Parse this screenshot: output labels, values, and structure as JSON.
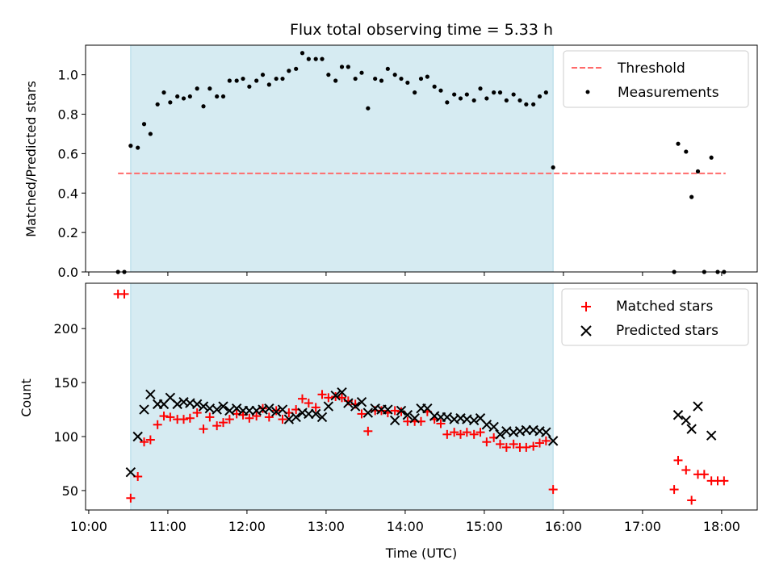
{
  "chart_data": [
    {
      "type": "scatter",
      "title": "Flux total observing time = 5.33 h",
      "xlabel": "",
      "ylabel": "Matched/Predicted stars",
      "xlim": [
        9.96,
        18.45
      ],
      "ylim": [
        0.0,
        1.15
      ],
      "yticks": [
        0.0,
        0.2,
        0.4,
        0.6,
        0.8,
        1.0
      ],
      "ytick_labels": [
        "0.0",
        "0.2",
        "0.4",
        "0.6",
        "0.8",
        "1.0"
      ],
      "shaded_region": {
        "x_start": 10.53,
        "x_end": 15.87,
        "color": "#add8e6"
      },
      "legend": {
        "position": "upper-right",
        "entries": [
          "Threshold",
          "Measurements"
        ]
      },
      "series": [
        {
          "name": "Threshold",
          "kind": "dashed-line",
          "color": "#ff6b6b",
          "x": [
            10.37,
            18.05
          ],
          "y": [
            0.5,
            0.5
          ]
        },
        {
          "name": "Measurements",
          "kind": "dot",
          "color": "#000000",
          "x": [
            10.37,
            10.45,
            10.53,
            10.62,
            10.7,
            10.78,
            10.87,
            10.95,
            11.03,
            11.12,
            11.2,
            11.28,
            11.37,
            11.45,
            11.53,
            11.62,
            11.7,
            11.78,
            11.87,
            11.95,
            12.03,
            12.12,
            12.2,
            12.28,
            12.37,
            12.45,
            12.53,
            12.62,
            12.7,
            12.78,
            12.87,
            12.95,
            13.03,
            13.12,
            13.2,
            13.28,
            13.37,
            13.45,
            13.53,
            13.62,
            13.7,
            13.78,
            13.87,
            13.95,
            14.03,
            14.12,
            14.2,
            14.28,
            14.37,
            14.45,
            14.53,
            14.62,
            14.7,
            14.78,
            14.87,
            14.95,
            15.03,
            15.12,
            15.2,
            15.28,
            15.37,
            15.45,
            15.53,
            15.62,
            15.7,
            15.78,
            15.87,
            17.4,
            17.45,
            17.55,
            17.62,
            17.7,
            17.78,
            17.87,
            17.95,
            18.03
          ],
          "y": [
            0.0,
            0.0,
            0.64,
            0.63,
            0.75,
            0.7,
            0.85,
            0.91,
            0.86,
            0.89,
            0.88,
            0.89,
            0.93,
            0.84,
            0.93,
            0.89,
            0.89,
            0.97,
            0.97,
            0.98,
            0.94,
            0.97,
            1.0,
            0.95,
            0.98,
            0.98,
            1.02,
            1.03,
            1.11,
            1.08,
            1.08,
            1.08,
            1.0,
            0.97,
            1.04,
            1.04,
            0.98,
            1.01,
            0.83,
            0.98,
            0.97,
            1.03,
            1.0,
            0.98,
            0.96,
            0.91,
            0.98,
            0.99,
            0.94,
            0.92,
            0.86,
            0.9,
            0.88,
            0.9,
            0.87,
            0.93,
            0.88,
            0.91,
            0.91,
            0.87,
            0.9,
            0.87,
            0.85,
            0.85,
            0.89,
            0.91,
            0.53,
            0.0,
            0.65,
            0.61,
            0.38,
            0.51,
            0.0,
            0.58,
            0.0,
            0.0
          ]
        }
      ]
    },
    {
      "type": "scatter",
      "title": "",
      "xlabel": "Time (UTC)",
      "ylabel": "Count",
      "xlim": [
        9.96,
        18.45
      ],
      "ylim": [
        32,
        242
      ],
      "yticks": [
        50,
        100,
        150,
        200
      ],
      "ytick_labels": [
        "50",
        "100",
        "150",
        "200"
      ],
      "xticks": [
        10,
        11,
        12,
        13,
        14,
        15,
        16,
        17,
        18
      ],
      "xtick_labels": [
        "10:00",
        "11:00",
        "12:00",
        "13:00",
        "14:00",
        "15:00",
        "16:00",
        "17:00",
        "18:00"
      ],
      "shaded_region": {
        "x_start": 10.53,
        "x_end": 15.87,
        "color": "#add8e6"
      },
      "legend": {
        "position": "upper-right",
        "entries": [
          "Matched stars",
          "Predicted stars"
        ]
      },
      "series": [
        {
          "name": "Matched stars",
          "kind": "plus",
          "color": "#ff0000",
          "x": [
            10.37,
            10.45,
            10.53,
            10.62,
            10.7,
            10.78,
            10.87,
            10.95,
            11.03,
            11.12,
            11.2,
            11.28,
            11.37,
            11.45,
            11.53,
            11.62,
            11.7,
            11.78,
            11.87,
            11.95,
            12.03,
            12.12,
            12.2,
            12.28,
            12.37,
            12.45,
            12.53,
            12.62,
            12.7,
            12.78,
            12.87,
            12.95,
            13.03,
            13.12,
            13.2,
            13.28,
            13.37,
            13.45,
            13.53,
            13.62,
            13.7,
            13.78,
            13.87,
            13.95,
            14.03,
            14.12,
            14.2,
            14.28,
            14.37,
            14.45,
            14.53,
            14.62,
            14.7,
            14.78,
            14.87,
            14.95,
            15.03,
            15.12,
            15.2,
            15.28,
            15.37,
            15.45,
            15.53,
            15.62,
            15.7,
            15.78,
            15.87,
            17.4,
            17.45,
            17.55,
            17.62,
            17.7,
            17.78,
            17.87,
            17.95,
            18.03
          ],
          "y": [
            232,
            232,
            43,
            63,
            95,
            97,
            111,
            119,
            118,
            116,
            116,
            117,
            122,
            107,
            118,
            110,
            113,
            116,
            121,
            120,
            117,
            119,
            126,
            118,
            124,
            116,
            122,
            125,
            135,
            131,
            127,
            139,
            136,
            137,
            136,
            133,
            130,
            121,
            105,
            124,
            124,
            122,
            124,
            123,
            114,
            114,
            114,
            123,
            116,
            112,
            102,
            104,
            102,
            104,
            102,
            104,
            95,
            99,
            93,
            90,
            93,
            90,
            90,
            91,
            94,
            96,
            51,
            51,
            78,
            69,
            41,
            65,
            65,
            59,
            59,
            59
          ]
        },
        {
          "name": "Predicted stars",
          "kind": "x",
          "color": "#000000",
          "x": [
            10.53,
            10.62,
            10.7,
            10.78,
            10.87,
            10.95,
            11.03,
            11.12,
            11.2,
            11.28,
            11.37,
            11.45,
            11.53,
            11.62,
            11.7,
            11.78,
            11.87,
            11.95,
            12.03,
            12.12,
            12.2,
            12.28,
            12.37,
            12.45,
            12.53,
            12.62,
            12.7,
            12.78,
            12.87,
            12.95,
            13.03,
            13.12,
            13.2,
            13.28,
            13.37,
            13.45,
            13.53,
            13.62,
            13.7,
            13.78,
            13.87,
            13.95,
            14.03,
            14.12,
            14.2,
            14.28,
            14.37,
            14.45,
            14.53,
            14.62,
            14.7,
            14.78,
            14.87,
            14.95,
            15.03,
            15.12,
            15.2,
            15.28,
            15.37,
            15.45,
            15.53,
            15.62,
            15.7,
            15.78,
            15.87,
            17.45,
            17.55,
            17.62,
            17.7,
            17.87
          ],
          "y": [
            67,
            100,
            125,
            139,
            130,
            130,
            136,
            130,
            132,
            131,
            130,
            128,
            126,
            125,
            128,
            124,
            126,
            124,
            124,
            124,
            125,
            126,
            123,
            125,
            116,
            118,
            122,
            121,
            121,
            118,
            128,
            138,
            141,
            131,
            128,
            132,
            122,
            126,
            125,
            125,
            115,
            124,
            120,
            117,
            126,
            126,
            119,
            118,
            118,
            116,
            117,
            116,
            115,
            117,
            111,
            109,
            102,
            105,
            104,
            105,
            106,
            106,
            105,
            104,
            96,
            120,
            115,
            107,
            128,
            101
          ]
        }
      ]
    }
  ]
}
